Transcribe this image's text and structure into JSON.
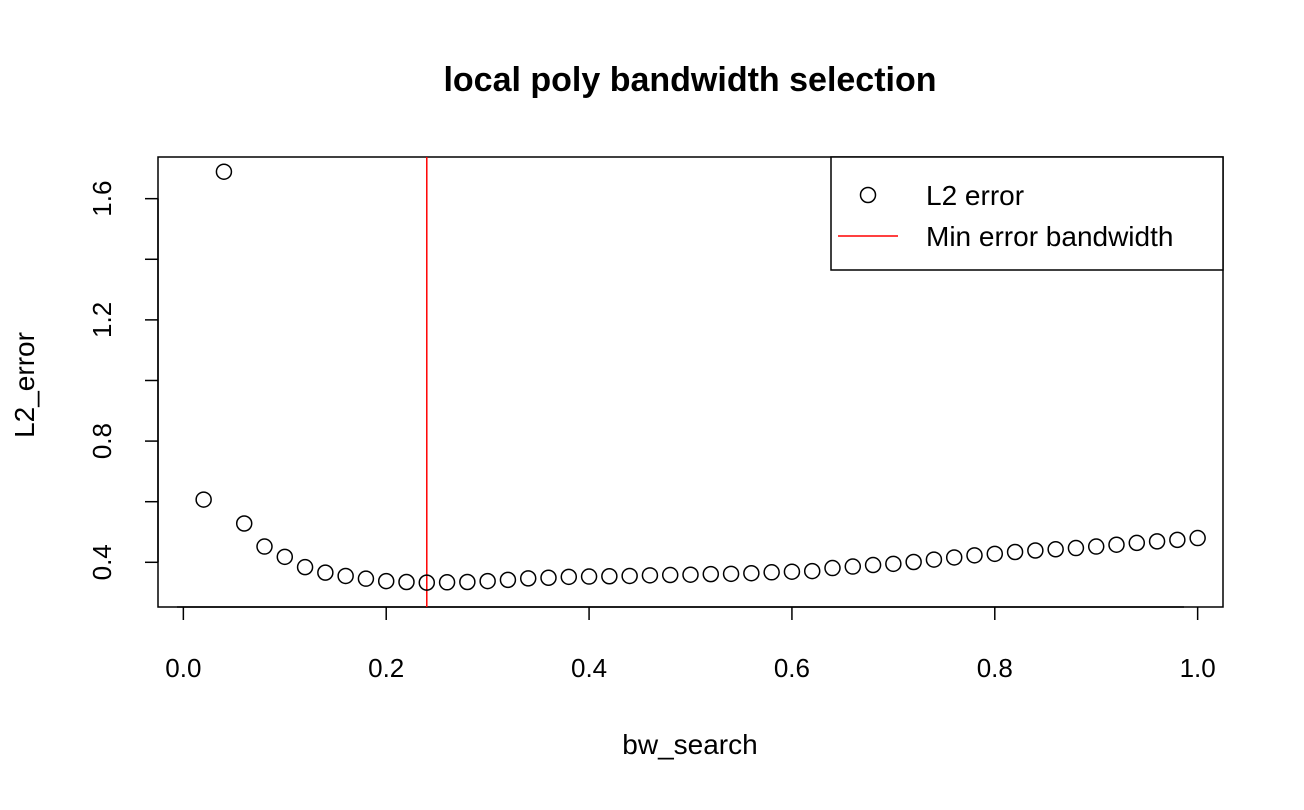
{
  "chart_data": {
    "type": "scatter",
    "title": "local poly bandwidth selection",
    "xlabel": "bw_search",
    "ylabel": "L2_error",
    "xlim": [
      -0.025,
      1.025
    ],
    "ylim": [
      0.2525,
      1.7375
    ],
    "x_ticks": [
      0.0,
      0.2,
      0.4,
      0.6,
      0.8,
      1.0
    ],
    "x_tick_labels": [
      "0.0",
      "0.2",
      "0.4",
      "0.6",
      "0.8",
      "1.0"
    ],
    "y_ticks": [
      0.4,
      0.6,
      0.8,
      1.0,
      1.2,
      1.4,
      1.6
    ],
    "y_tick_labels": [
      "0.4",
      "",
      "0.8",
      "",
      "1.2",
      "",
      "1.6"
    ],
    "grid": false,
    "legend_position": "top-right",
    "series": [
      {
        "name": "L2 error",
        "style": "open-circle",
        "color": "#000000",
        "x": [
          0.02,
          0.04,
          0.06,
          0.08,
          0.1,
          0.12,
          0.14,
          0.16,
          0.18,
          0.2,
          0.22,
          0.24,
          0.26,
          0.28,
          0.3,
          0.32,
          0.34,
          0.36,
          0.38,
          0.4,
          0.42,
          0.44,
          0.46,
          0.48,
          0.5,
          0.52,
          0.54,
          0.56,
          0.58,
          0.6,
          0.62,
          0.64,
          0.66,
          0.68,
          0.7,
          0.72,
          0.74,
          0.76,
          0.78,
          0.8,
          0.82,
          0.84,
          0.86,
          0.88,
          0.9,
          0.92,
          0.94,
          0.96,
          0.98,
          1.0
        ],
        "y": [
          0.607,
          1.689,
          0.528,
          0.452,
          0.418,
          0.384,
          0.366,
          0.355,
          0.346,
          0.338,
          0.335,
          0.333,
          0.334,
          0.335,
          0.338,
          0.342,
          0.347,
          0.349,
          0.352,
          0.353,
          0.354,
          0.355,
          0.357,
          0.358,
          0.359,
          0.361,
          0.362,
          0.364,
          0.367,
          0.369,
          0.371,
          0.381,
          0.386,
          0.391,
          0.395,
          0.401,
          0.409,
          0.416,
          0.423,
          0.428,
          0.434,
          0.439,
          0.443,
          0.447,
          0.452,
          0.458,
          0.464,
          0.469,
          0.474,
          0.48
        ]
      },
      {
        "name": "Min error bandwidth",
        "type": "vline",
        "color": "#ff0000",
        "x": 0.24
      }
    ]
  }
}
